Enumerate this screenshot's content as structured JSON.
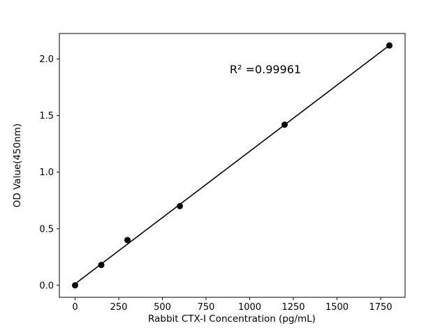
{
  "chart_data": {
    "type": "scatter",
    "title": "",
    "xlabel": "Rabbit CTX-I Concentration (pg/mL)",
    "ylabel": "OD Value(450nm)",
    "annotation": "R² =0.99961",
    "x": [
      0,
      150,
      300,
      600,
      1200,
      1800
    ],
    "y": [
      0.0,
      0.18,
      0.4,
      0.7,
      1.42,
      2.12
    ],
    "fit_line": {
      "x1": 0,
      "y1": 0.013,
      "x2": 1800,
      "y2": 2.121
    },
    "x_ticks": [
      0,
      250,
      500,
      750,
      1000,
      1250,
      1500,
      1750
    ],
    "y_ticks": [
      0.0,
      0.5,
      1.0,
      1.5,
      2.0
    ],
    "xlim": [
      -90,
      1890
    ],
    "ylim": [
      -0.106,
      2.226
    ],
    "grid": false,
    "legend": "none",
    "marker_color": "#000000",
    "line_color": "#000000",
    "background_color": "#ffffff"
  }
}
